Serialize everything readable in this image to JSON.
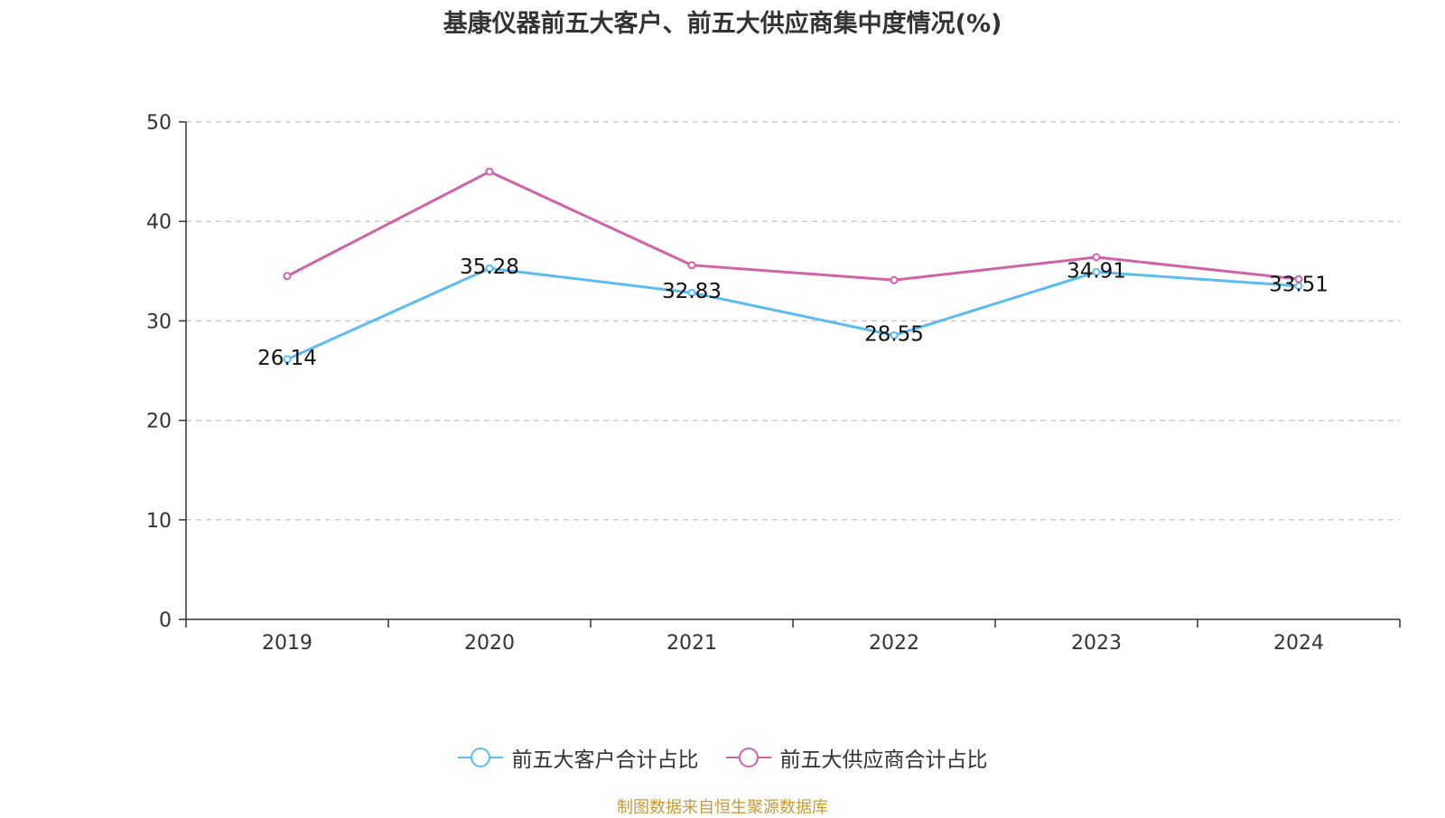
{
  "title": "基康仪器前五大客户、前五大供应商集中度情况(%)",
  "source": "制图数据来自恒生聚源数据库",
  "chart_data": {
    "type": "line",
    "title": "基康仪器前五大客户、前五大供应商集中度情况(%)",
    "categories": [
      "2019",
      "2020",
      "2021",
      "2022",
      "2023",
      "2024"
    ],
    "ylim": [
      0,
      50
    ],
    "yticks": [
      0,
      10,
      20,
      30,
      40,
      50
    ],
    "grid": "horizontal-dashed",
    "legend_position": "bottom",
    "series": [
      {
        "name": "前五大客户合计占比",
        "color": "#5bbcf0",
        "values": [
          26.14,
          35.28,
          32.83,
          28.55,
          34.91,
          33.51
        ],
        "labels": [
          "26.14",
          "35.28",
          "32.83",
          "28.55",
          "34.91",
          "33.51"
        ]
      },
      {
        "name": "前五大供应商合计占比",
        "color": "#d062a8",
        "values": [
          34.5,
          45.0,
          35.6,
          34.1,
          36.4,
          34.2
        ]
      }
    ]
  }
}
